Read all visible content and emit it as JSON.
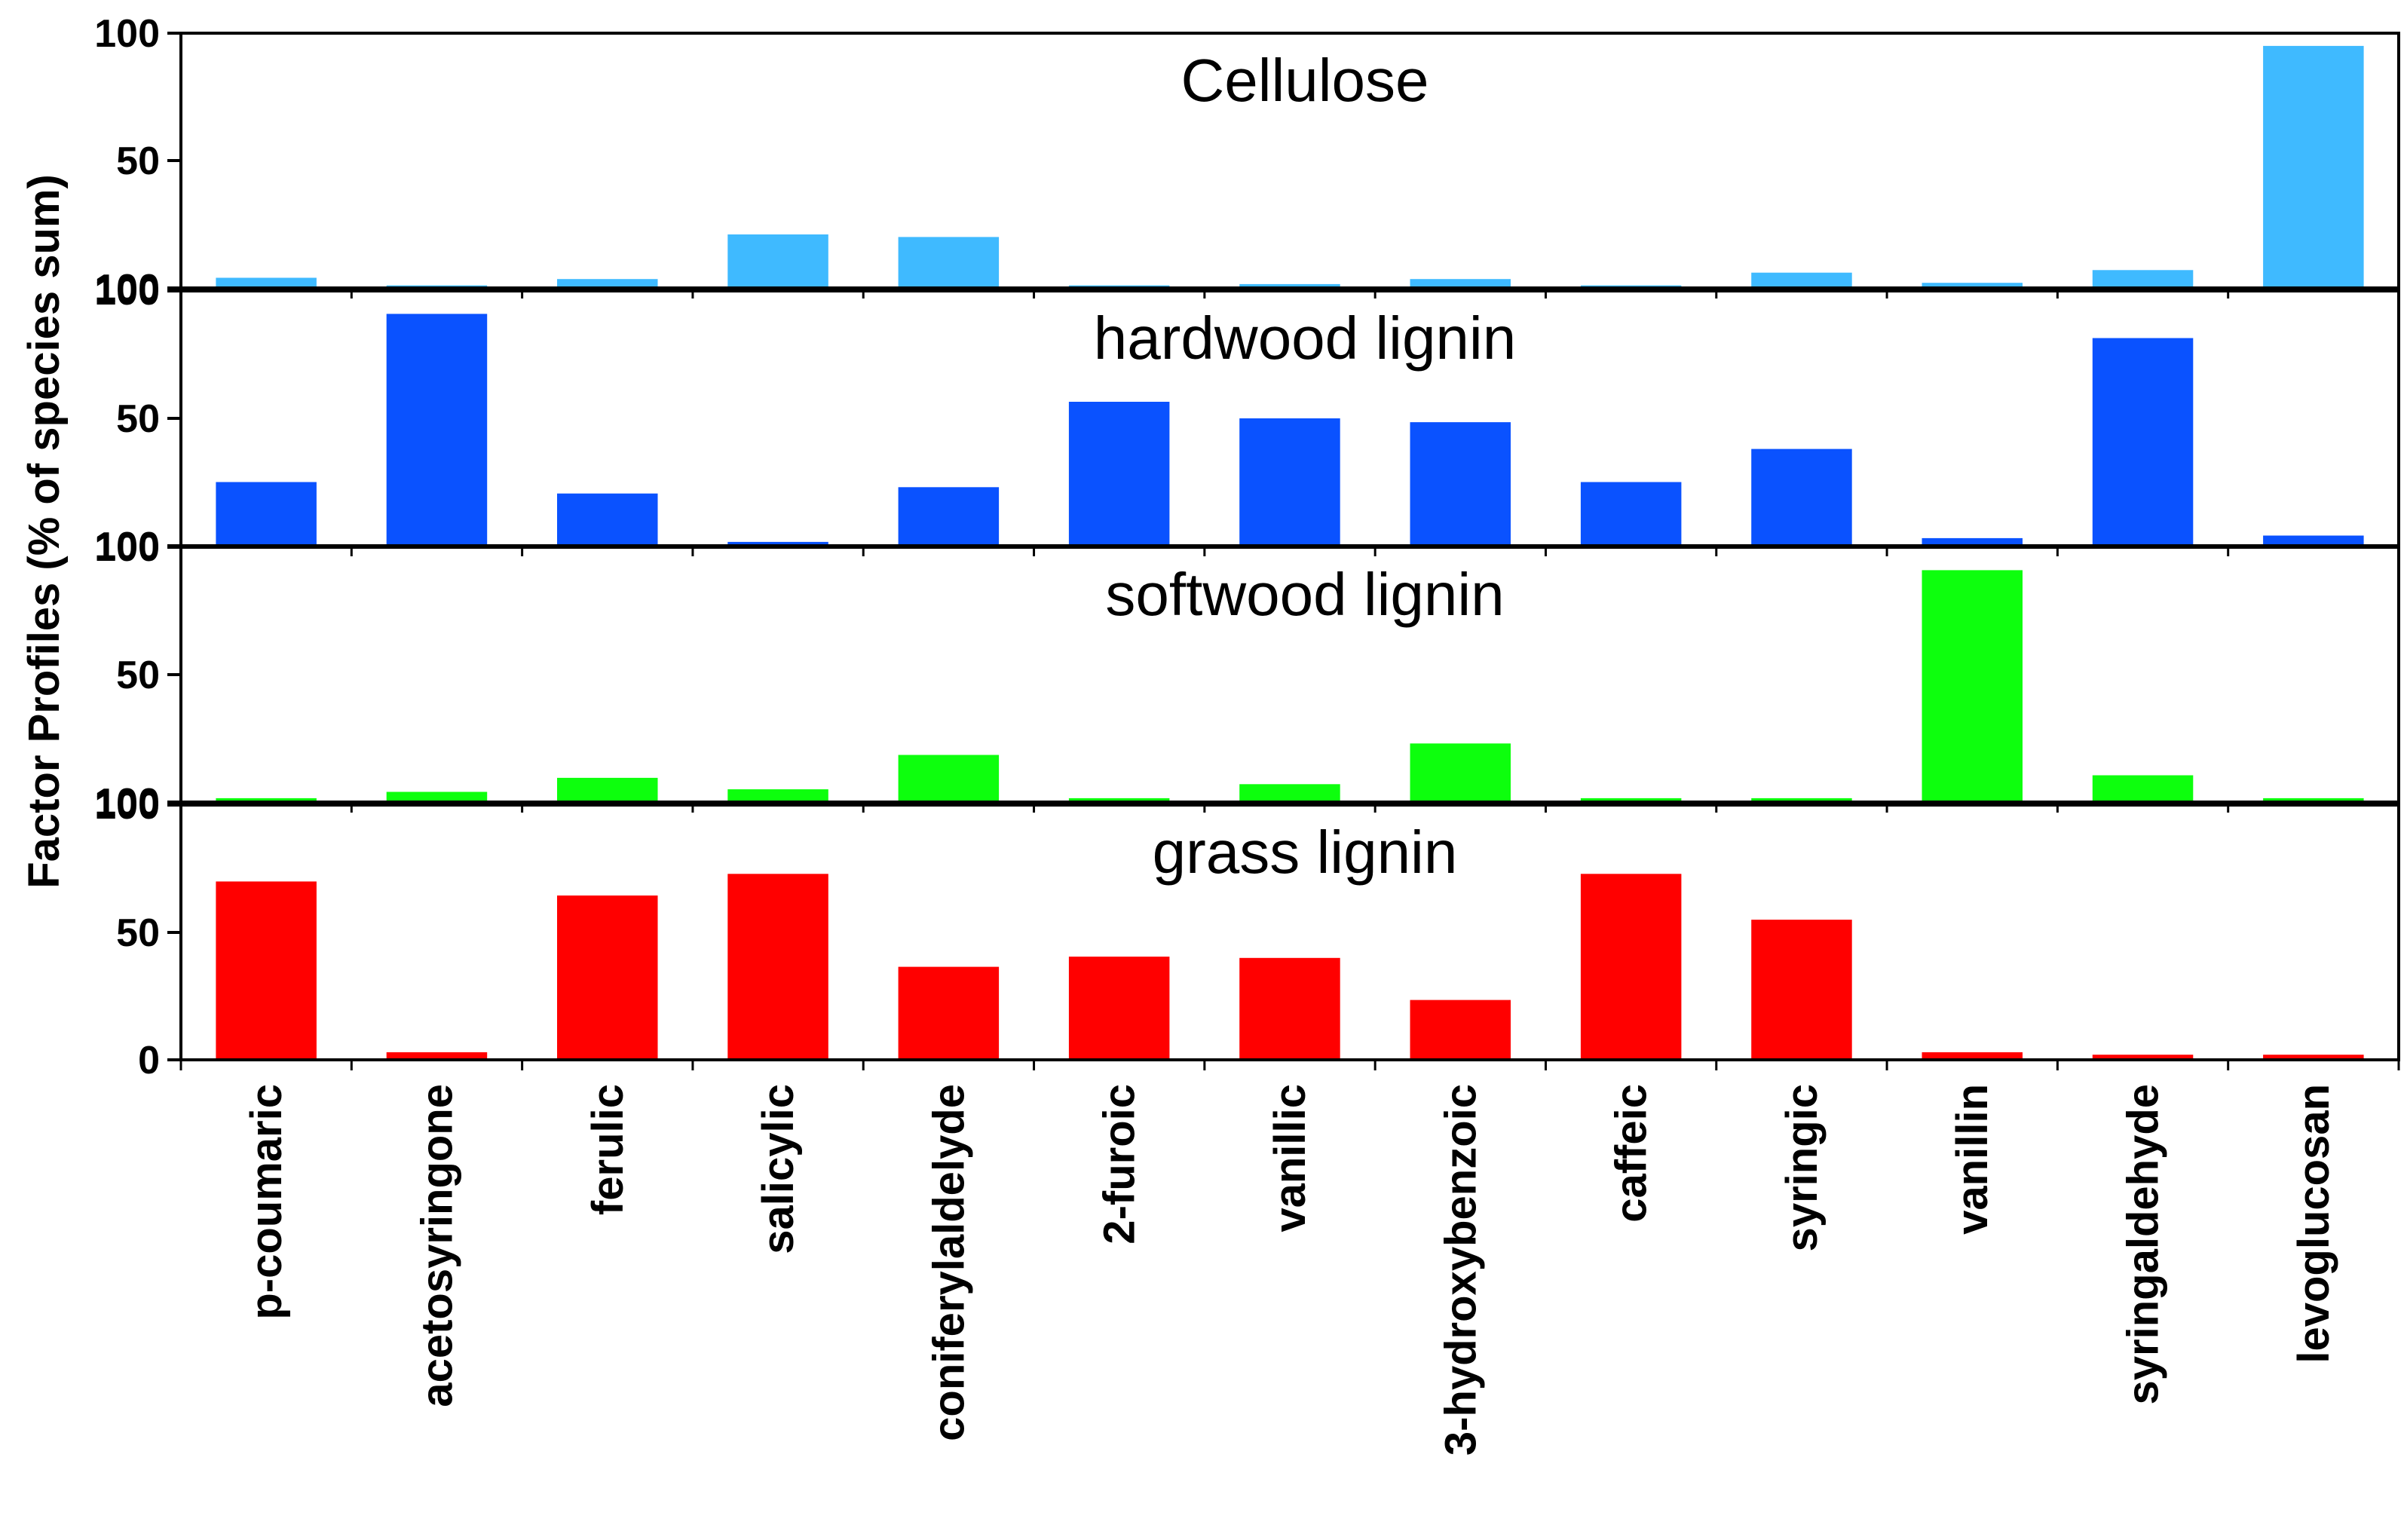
{
  "chart_data": {
    "type": "bar",
    "ylabel": "Factor Profiles (% of species sum)",
    "xlabel": "",
    "ylim": [
      0,
      100
    ],
    "categories": [
      "p-coumaric",
      "acetosyringone",
      "ferulic",
      "salicylic",
      "coniferylaldelyde",
      "2-furoic",
      "vanillic",
      "3-hydroxybenzoic",
      "caffeic",
      "syringic",
      "vanillin",
      "syringaldehyde",
      "levoglucosan"
    ],
    "panels": [
      {
        "title": "Cellulose",
        "color": "#3fbaff",
        "tick_labels": [
          "100",
          "50",
          "100"
        ],
        "values": [
          4,
          1,
          3.5,
          21,
          20,
          1,
          1.5,
          3.5,
          1,
          6,
          2,
          7,
          95
        ]
      },
      {
        "title": "hardwood lignin",
        "color": "#0a52ff",
        "tick_labels": [
          "100",
          "50",
          "100"
        ],
        "values": [
          25,
          91,
          20.5,
          1.5,
          23,
          56.5,
          50,
          48.5,
          25,
          38,
          3,
          81.5,
          4
        ]
      },
      {
        "title": "softwood lignin",
        "color": "#0dff0d",
        "tick_labels": [
          "100",
          "50",
          "100"
        ],
        "values": [
          1.5,
          4,
          9.5,
          5,
          18.5,
          1.5,
          7,
          23,
          1.5,
          1.5,
          91,
          10.5,
          1.5
        ]
      },
      {
        "title": "grass lignin",
        "color": "#ff0000",
        "tick_labels": [
          "100",
          "50",
          "0"
        ],
        "values": [
          70,
          3,
          64.5,
          73,
          36.5,
          40.5,
          40,
          23.5,
          73,
          55,
          3,
          2,
          2
        ]
      }
    ]
  }
}
